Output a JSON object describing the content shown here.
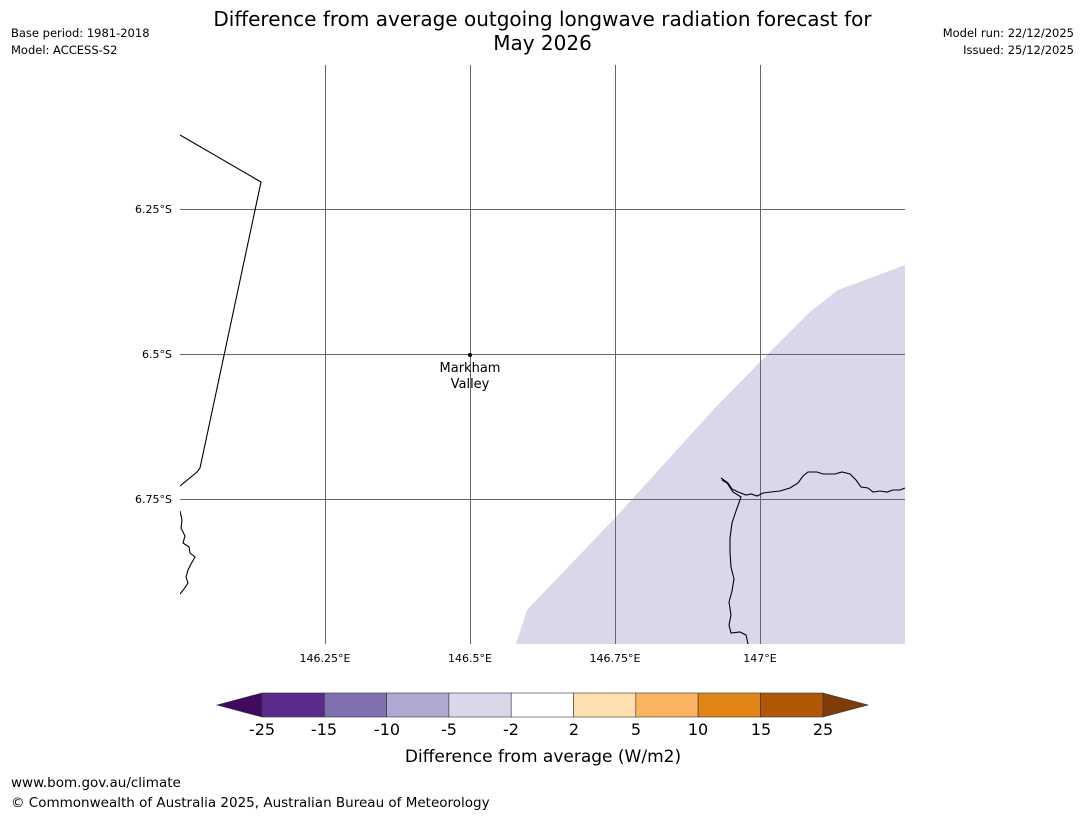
{
  "header": {
    "title_line1": "Difference from average outgoing longwave radiation forecast for",
    "title_line2": "May 2026",
    "base_period": "Base period: 1981-2018",
    "model": "Model: ACCESS-S2",
    "model_run": "Model run: 22/12/2025",
    "issued": "Issued: 25/12/2025"
  },
  "map": {
    "lat_labels": [
      "6.25°S",
      "6.5°S",
      "6.75°S"
    ],
    "lon_labels": [
      "146.25°E",
      "146.5°E",
      "146.75°E",
      "147°E"
    ],
    "place": {
      "name_line1": "Markham",
      "name_line2": "Valley",
      "lat": -6.5,
      "lon": 146.5
    },
    "shaded_category": "-5 to -2",
    "shaded_color": "#d8d8ea"
  },
  "colorbar": {
    "title": "Difference from average (W/m2)",
    "ticks": [
      "-25",
      "-15",
      "-10",
      "-5",
      "-2",
      "2",
      "5",
      "10",
      "15",
      "25"
    ],
    "colors": [
      "#3f0a5f",
      "#5b2a8a",
      "#8070b0",
      "#b0a8d2",
      "#d8d8ea",
      "#ffffff",
      "#fddfb0",
      "#fbb461",
      "#e08416",
      "#b15806",
      "#7f3b08"
    ]
  },
  "footer": {
    "url": "www.bom.gov.au/climate",
    "copyright": "© Commonwealth of Australia 2025, Australian Bureau of Meteorology"
  }
}
